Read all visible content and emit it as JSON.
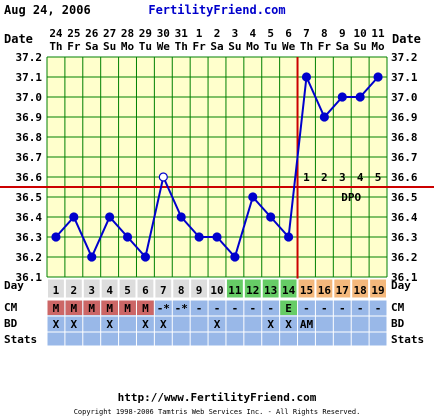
{
  "header": {
    "date": "Aug 24, 2006",
    "site": "FertilityFriend.com"
  },
  "footer": {
    "url": "http://www.FertilityFriend.com",
    "copyright": "Copyright 1998-2006 Tamtris Web Services Inc. - All Rights Reserved."
  },
  "row_labels": {
    "date": "Date",
    "day": "Day",
    "cm": "CM",
    "bd": "BD",
    "stats": "Stats"
  },
  "colors": {
    "grid_bg": "#ffffcc",
    "grid_line": "#008000",
    "series": "#0000cc",
    "coverline": "#cc0000",
    "ovulation_line": "#cc0000",
    "day_cell": "#dddddd",
    "fertile_cell": "#66cc66",
    "luteal_cell": "#f4b87c",
    "cm_menstrual": "#cc6666",
    "row_band": "#99b8e8",
    "site_link": "#0000cc"
  },
  "chart_data": {
    "type": "line",
    "title": "",
    "xlabel": "",
    "ylabel": "",
    "ylim": [
      36.1,
      37.2
    ],
    "y_ticks": [
      "37.2",
      "37.1",
      "37.0",
      "36.9",
      "36.8",
      "36.7",
      "36.6",
      "36.5",
      "36.4",
      "36.3",
      "36.2",
      "36.1"
    ],
    "grid": true,
    "cycle_days": [
      1,
      2,
      3,
      4,
      5,
      6,
      7,
      8,
      9,
      10,
      11,
      12,
      13,
      14,
      15,
      16,
      17,
      18,
      19
    ],
    "dates": [
      "24",
      "25",
      "26",
      "27",
      "28",
      "29",
      "30",
      "31",
      "1",
      "2",
      "3",
      "4",
      "5",
      "6",
      "7",
      "8",
      "9",
      "10",
      "11"
    ],
    "weekdays": [
      "Th",
      "Fr",
      "Sa",
      "Su",
      "Mo",
      "Tu",
      "We",
      "Th",
      "Fr",
      "Sa",
      "Su",
      "Mo",
      "Tu",
      "We",
      "Th",
      "Fr",
      "Sa",
      "Su",
      "Mo"
    ],
    "temperatures": [
      36.3,
      36.4,
      36.2,
      36.4,
      36.3,
      36.2,
      36.6,
      36.4,
      36.3,
      36.3,
      36.2,
      36.5,
      36.4,
      36.3,
      37.1,
      36.9,
      37.0,
      37.0,
      37.1
    ],
    "open_marker_days": [
      7
    ],
    "coverline": 36.55,
    "ovulation_day": 14,
    "dpo_label": "DPO",
    "dpo_numbers": [
      "1",
      "2",
      "3",
      "4",
      "5"
    ],
    "day_phase": [
      "none",
      "none",
      "none",
      "none",
      "none",
      "none",
      "none",
      "none",
      "none",
      "none",
      "fertile",
      "fertile",
      "fertile",
      "fertile",
      "luteal",
      "luteal",
      "luteal",
      "luteal",
      "luteal"
    ],
    "cm": [
      "M",
      "M",
      "M",
      "M",
      "M",
      "M",
      "-*",
      "-*",
      "-",
      "-",
      "-",
      "-",
      "-",
      "E",
      "-",
      "-",
      "-",
      "-",
      "-"
    ],
    "bd": [
      "X",
      "X",
      "",
      "X",
      "",
      "X",
      "X",
      "",
      "",
      "X",
      "",
      "",
      "X",
      "X",
      "AM",
      "",
      "",
      "",
      ""
    ]
  }
}
